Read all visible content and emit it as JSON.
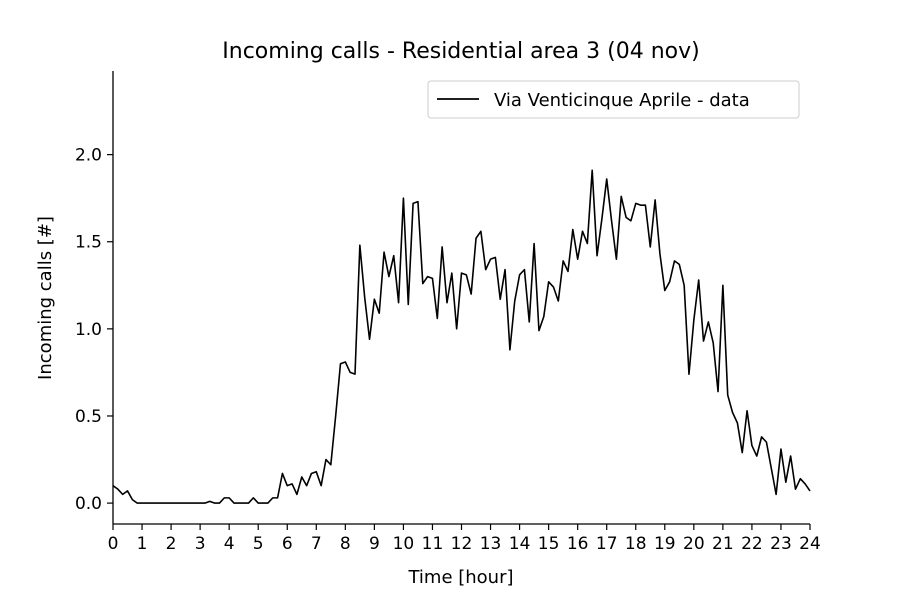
{
  "chart_data": {
    "type": "line",
    "title": "Incoming calls - Residential area 3 (04 nov)",
    "xlabel": "Time [hour]",
    "ylabel": "Incoming calls [#]",
    "xlim": [
      0,
      24
    ],
    "ylim": [
      -0.12,
      2.48
    ],
    "xticks": [
      "0",
      "1",
      "2",
      "3",
      "4",
      "5",
      "6",
      "7",
      "8",
      "9",
      "10",
      "11",
      "12",
      "13",
      "14",
      "15",
      "16",
      "17",
      "18",
      "19",
      "20",
      "21",
      "22",
      "23",
      "24"
    ],
    "yticks": [
      "0.0",
      "0.5",
      "1.0",
      "1.5",
      "2.0"
    ],
    "grid": false,
    "legend_position": "top-right",
    "series": [
      {
        "name": "Via Venticinque Aprile - data",
        "color": "#000000",
        "x": [
          0,
          0.167,
          0.333,
          0.5,
          0.667,
          0.833,
          1,
          1.167,
          1.333,
          1.5,
          1.667,
          1.833,
          2,
          2.167,
          2.333,
          2.5,
          2.667,
          2.833,
          3,
          3.167,
          3.333,
          3.5,
          3.667,
          3.833,
          4,
          4.167,
          4.333,
          4.5,
          4.667,
          4.833,
          5,
          5.167,
          5.333,
          5.5,
          5.667,
          5.833,
          6,
          6.167,
          6.333,
          6.5,
          6.667,
          6.833,
          7,
          7.167,
          7.333,
          7.5,
          7.667,
          7.833,
          8,
          8.167,
          8.333,
          8.5,
          8.667,
          8.833,
          9,
          9.167,
          9.333,
          9.5,
          9.667,
          9.833,
          10,
          10.167,
          10.333,
          10.5,
          10.667,
          10.833,
          11,
          11.167,
          11.333,
          11.5,
          11.667,
          11.833,
          12,
          12.167,
          12.333,
          12.5,
          12.667,
          12.833,
          13,
          13.167,
          13.333,
          13.5,
          13.667,
          13.833,
          14,
          14.167,
          14.333,
          14.5,
          14.667,
          14.833,
          15,
          15.167,
          15.333,
          15.5,
          15.667,
          15.833,
          16,
          16.167,
          16.333,
          16.5,
          16.667,
          16.833,
          17,
          17.167,
          17.333,
          17.5,
          17.667,
          17.833,
          18,
          18.167,
          18.333,
          18.5,
          18.667,
          18.833,
          19,
          19.167,
          19.333,
          19.5,
          19.667,
          19.833,
          20,
          20.167,
          20.333,
          20.5,
          20.667,
          20.833,
          21,
          21.167,
          21.333,
          21.5,
          21.667,
          21.833,
          22,
          22.167,
          22.333,
          22.5,
          22.667,
          22.833,
          23,
          23.167,
          23.333,
          23.5,
          23.667,
          23.833,
          24
        ],
        "y": [
          0.1,
          0.08,
          0.05,
          0.07,
          0.02,
          0,
          0,
          0,
          0,
          0,
          0,
          0,
          0,
          0,
          0,
          0,
          0,
          0,
          0,
          0,
          0.01,
          0,
          0,
          0.03,
          0.03,
          0,
          0,
          0,
          0,
          0.03,
          0,
          0,
          0,
          0.03,
          0.03,
          0.17,
          0.1,
          0.11,
          0.05,
          0.15,
          0.1,
          0.17,
          0.18,
          0.1,
          0.25,
          0.22,
          0.5,
          0.8,
          0.81,
          0.75,
          0.74,
          1.48,
          1.18,
          0.94,
          1.17,
          1.09,
          1.44,
          1.3,
          1.42,
          1.15,
          1.75,
          1.14,
          1.72,
          1.73,
          1.26,
          1.3,
          1.29,
          1.06,
          1.47,
          1.15,
          1.32,
          1,
          1.32,
          1.31,
          1.2,
          1.52,
          1.56,
          1.34,
          1.4,
          1.41,
          1.17,
          1.34,
          0.88,
          1.16,
          1.31,
          1.34,
          1.04,
          1.49,
          0.99,
          1.07,
          1.27,
          1.24,
          1.16,
          1.39,
          1.33,
          1.57,
          1.4,
          1.56,
          1.49,
          1.91,
          1.42,
          1.63,
          1.86,
          1.62,
          1.4,
          1.76,
          1.64,
          1.62,
          1.72,
          1.71,
          1.71,
          1.47,
          1.74,
          1.43,
          1.22,
          1.27,
          1.39,
          1.37,
          1.25,
          0.74,
          1.05,
          1.28,
          0.93,
          1.04,
          0.92,
          0.64,
          1.25,
          0.62,
          0.52,
          0.46,
          0.29,
          0.53,
          0.33,
          0.27,
          0.38,
          0.35,
          0.2,
          0.05,
          0.31,
          0.12,
          0.27,
          0.08,
          0.14,
          0.11,
          0.07
        ]
      }
    ]
  }
}
